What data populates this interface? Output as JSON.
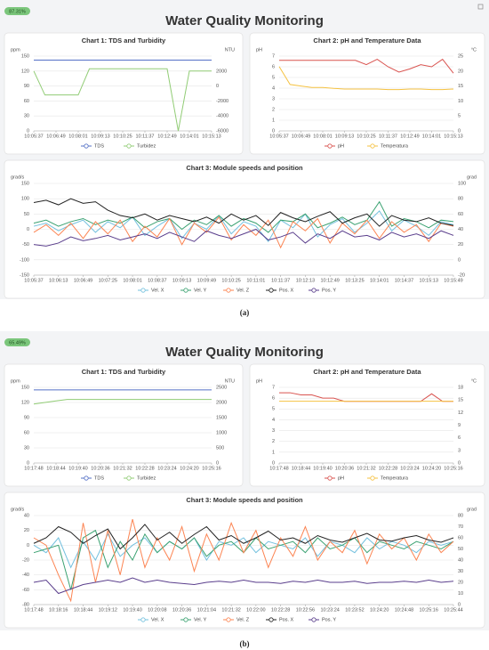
{
  "panels": [
    {
      "badge": "87.31%",
      "title": "Water Quality Monitoring",
      "caption": "(a)"
    },
    {
      "badge": "65.49%",
      "title": "Water Quality Monitoring",
      "caption": "(b)"
    }
  ],
  "chart_data": [
    {
      "type": "line",
      "title": "Chart 1: TDS and Turbidity",
      "ylabel": "ppm",
      "y2label": "NTU",
      "categories": [
        "10:05:37",
        null,
        "10:06:49",
        null,
        "10:08:01",
        null,
        "10:09:13",
        null,
        "10:10:25",
        null,
        "10:11:37",
        null,
        "10:12:49",
        null,
        "10:14:01",
        null,
        "10:15:13"
      ],
      "ylim": [
        0,
        150
      ],
      "yticks": [
        0,
        30,
        60,
        90,
        120,
        150
      ],
      "y2lim": [
        -6000,
        4000
      ],
      "y2ticks": [
        -6000,
        -4000,
        -2000,
        0,
        2000
      ],
      "grid": true,
      "series": [
        {
          "name": "TDS",
          "color": "#5470c6",
          "values": [
            142,
            142,
            142,
            142,
            142,
            142,
            142,
            142,
            142,
            142,
            142,
            142,
            142,
            142,
            142,
            142,
            142
          ]
        },
        {
          "name": "Turbidez",
          "color": "#91cc75",
          "axis": "y2",
          "values": [
            2000,
            -1200,
            -1200,
            -1200,
            -1200,
            2300,
            2300,
            2300,
            2300,
            2300,
            2300,
            2300,
            2300,
            -6000,
            2000,
            2000,
            2000
          ]
        }
      ]
    },
    {
      "type": "line",
      "title": "Chart 2: pH and Temperature Data",
      "ylabel": "pH",
      "y2label": "°C",
      "categories": [
        "10:05:37",
        null,
        "10:06:49",
        null,
        "10:08:01",
        null,
        "10:09:13",
        null,
        "10:10:25",
        null,
        "10:11:37",
        null,
        "10:12:49",
        null,
        "10:14:01",
        null,
        "10:15:13"
      ],
      "ylim": [
        0,
        7
      ],
      "yticks": [
        0,
        1,
        2,
        3,
        4,
        5,
        6,
        7
      ],
      "y2lim": [
        0,
        25
      ],
      "y2ticks": [
        0,
        5,
        10,
        15,
        20,
        25
      ],
      "grid": true,
      "series": [
        {
          "name": "pH",
          "color": "#d9534f",
          "values": [
            6.6,
            6.6,
            6.6,
            6.6,
            6.6,
            6.6,
            6.6,
            6.6,
            6.2,
            6.7,
            6.0,
            5.5,
            5.8,
            6.2,
            6.0,
            6.7,
            5.4
          ]
        },
        {
          "name": "Temperatura",
          "color": "#f5c242",
          "axis": "y2",
          "values": [
            21.5,
            15.5,
            15,
            14.5,
            14.5,
            14.2,
            14,
            14,
            14,
            14,
            13.8,
            13.8,
            14,
            14,
            13.8,
            13.8,
            14
          ]
        }
      ]
    },
    {
      "type": "line",
      "title": "Chart 3: Module speeds and position",
      "ylabel": "grad/s",
      "y2label": "grad",
      "categories": [
        "10:05:37",
        null,
        "10:06:13",
        null,
        "10:06:49",
        null,
        "10:07:25",
        null,
        "10:08:01",
        null,
        "10:08:37",
        null,
        "10:09:13",
        null,
        "10:09:49",
        null,
        "10:10:25",
        null,
        "10:11:01",
        null,
        "10:11:37",
        null,
        "10:12:13",
        null,
        "10:12:49",
        null,
        "10:13:25",
        null,
        "10:14:01",
        null,
        "10:14:37",
        null,
        "10:15:13",
        null,
        "10:15:49"
      ],
      "ylim": [
        -150,
        150
      ],
      "yticks": [
        -150,
        -100,
        -50,
        0,
        50,
        100,
        150
      ],
      "y2lim": [
        -20,
        100
      ],
      "y2ticks": [
        -20,
        0,
        20,
        40,
        60,
        80,
        100
      ],
      "grid": true,
      "series": [
        {
          "name": "Vel. X",
          "color": "#73c0de",
          "values": [
            10,
            20,
            -5,
            15,
            30,
            -10,
            25,
            5,
            40,
            -20,
            10,
            35,
            -30,
            20,
            0,
            45,
            -15,
            25,
            10,
            -40,
            30,
            5,
            50,
            -25,
            15,
            35,
            -10,
            20,
            60,
            -5,
            30,
            10,
            -20,
            25,
            15
          ]
        },
        {
          "name": "Vel. Y",
          "color": "#3ba272",
          "values": [
            20,
            30,
            10,
            25,
            35,
            15,
            30,
            20,
            40,
            5,
            25,
            35,
            0,
            30,
            15,
            45,
            10,
            35,
            20,
            -10,
            30,
            25,
            50,
            5,
            20,
            40,
            15,
            30,
            90,
            10,
            35,
            25,
            5,
            30,
            25
          ]
        },
        {
          "name": "Vel. Z",
          "color": "#fc8452",
          "values": [
            -10,
            15,
            -20,
            20,
            -30,
            25,
            -15,
            30,
            -40,
            10,
            -25,
            35,
            -50,
            20,
            -10,
            40,
            -35,
            15,
            -20,
            30,
            -60,
            25,
            -5,
            35,
            -45,
            20,
            -15,
            30,
            -30,
            25,
            -10,
            15,
            -40,
            20,
            10
          ]
        },
        {
          "name": "Pos. X",
          "color": "#222222",
          "axis": "y2",
          "values": [
            75,
            78,
            72,
            80,
            74,
            76,
            65,
            58,
            55,
            60,
            52,
            58,
            54,
            50,
            56,
            48,
            60,
            52,
            58,
            45,
            62,
            55,
            50,
            57,
            63,
            48,
            55,
            60,
            44,
            58,
            52,
            50,
            55,
            48,
            45
          ]
        },
        {
          "name": "Pos. Y",
          "color": "#5a3e8c",
          "axis": "y2",
          "values": [
            20,
            18,
            22,
            30,
            25,
            28,
            32,
            26,
            30,
            34,
            28,
            36,
            30,
            24,
            38,
            32,
            28,
            34,
            40,
            26,
            30,
            36,
            22,
            34,
            28,
            38,
            30,
            32,
            26,
            36,
            30,
            34,
            28,
            38,
            32
          ]
        }
      ]
    },
    {
      "type": "line",
      "title": "Chart 1: TDS and Turbidity",
      "ylabel": "ppm",
      "y2label": "NTU",
      "categories": [
        "10:17:48",
        null,
        "10:18:44",
        null,
        "10:19:40",
        null,
        "10:20:36",
        null,
        "10:21:32",
        null,
        "10:22:28",
        null,
        "10:23:24",
        null,
        "10:24:20",
        null,
        "10:25:16"
      ],
      "ylim": [
        0,
        150
      ],
      "yticks": [
        0,
        30,
        60,
        90,
        120,
        150
      ],
      "y2lim": [
        0,
        2500
      ],
      "y2ticks": [
        0,
        500,
        1000,
        1500,
        2000,
        2500
      ],
      "grid": true,
      "series": [
        {
          "name": "TDS",
          "color": "#5470c6",
          "values": [
            145,
            145,
            145,
            145,
            145,
            145,
            145,
            145,
            145,
            145,
            145,
            145,
            145,
            145,
            145,
            145,
            145
          ]
        },
        {
          "name": "Turbidez",
          "color": "#91cc75",
          "axis": "y2",
          "values": [
            1950,
            2000,
            2050,
            2100,
            2100,
            2100,
            2100,
            2100,
            2100,
            2100,
            2100,
            2100,
            2100,
            2100,
            2100,
            2100,
            2100
          ]
        }
      ]
    },
    {
      "type": "line",
      "title": "Chart 2: pH and Temperature Data",
      "ylabel": "pH",
      "y2label": "°C",
      "categories": [
        "10:17:48",
        null,
        "10:18:44",
        null,
        "10:19:40",
        null,
        "10:20:36",
        null,
        "10:21:32",
        null,
        "10:22:28",
        null,
        "10:23:24",
        null,
        "10:24:20",
        null,
        "10:25:16"
      ],
      "ylim": [
        0,
        7
      ],
      "yticks": [
        0,
        1,
        2,
        3,
        4,
        5,
        6,
        7
      ],
      "y2lim": [
        0,
        18
      ],
      "y2ticks": [
        0,
        3,
        6,
        9,
        12,
        15,
        18
      ],
      "grid": true,
      "series": [
        {
          "name": "pH",
          "color": "#d9534f",
          "values": [
            6.5,
            6.5,
            6.3,
            6.3,
            6.0,
            6.0,
            5.7,
            5.7,
            5.7,
            5.7,
            5.7,
            5.7,
            5.7,
            5.7,
            6.4,
            5.7,
            5.7
          ]
        },
        {
          "name": "Temperatura",
          "color": "#f5c242",
          "axis": "y2",
          "values": [
            14.7,
            14.7,
            14.7,
            14.7,
            14.7,
            14.7,
            14.7,
            14.7,
            14.7,
            14.7,
            14.7,
            14.7,
            14.7,
            14.7,
            14.7,
            14.7,
            14.7
          ]
        }
      ]
    },
    {
      "type": "line",
      "title": "Chart 3: Module speeds and position",
      "ylabel": "grad/s",
      "y2label": "grad",
      "categories": [
        "10:17:48",
        null,
        "10:18:16",
        null,
        "10:18:44",
        null,
        "10:19:12",
        null,
        "10:19:40",
        null,
        "10:20:08",
        null,
        "10:20:36",
        null,
        "10:21:04",
        null,
        "10:21:32",
        null,
        "10:22:00",
        null,
        "10:22:28",
        null,
        "10:22:56",
        null,
        "10:23:24",
        null,
        "10:23:52",
        null,
        "10:24:20",
        null,
        "10:24:48",
        null,
        "10:25:16",
        null,
        "10:25:44"
      ],
      "ylim": [
        -80,
        40
      ],
      "yticks": [
        -80,
        -60,
        -40,
        -20,
        0,
        20,
        40
      ],
      "y2lim": [
        0,
        80
      ],
      "y2ticks": [
        0,
        10,
        20,
        30,
        40,
        50,
        60,
        70,
        80
      ],
      "grid": true,
      "series": [
        {
          "name": "Vel. X",
          "color": "#73c0de",
          "values": [
            0,
            -10,
            10,
            -30,
            5,
            -20,
            15,
            -15,
            0,
            10,
            -10,
            5,
            -5,
            10,
            -20,
            5,
            0,
            10,
            -10,
            5,
            0,
            -5,
            10,
            -15,
            5,
            0,
            -10,
            10,
            -5,
            5,
            0,
            -10,
            5,
            0,
            5
          ]
        },
        {
          "name": "Vel. Y",
          "color": "#3ba272",
          "values": [
            -10,
            -5,
            0,
            -60,
            10,
            20,
            -30,
            5,
            -20,
            15,
            -10,
            5,
            -5,
            10,
            -15,
            0,
            5,
            -10,
            10,
            -5,
            0,
            5,
            -10,
            10,
            -5,
            0,
            10,
            -10,
            5,
            0,
            -5,
            5,
            0,
            -5,
            5
          ]
        },
        {
          "name": "Vel. Z",
          "color": "#fc8452",
          "values": [
            10,
            0,
            -40,
            -75,
            30,
            -50,
            20,
            -40,
            35,
            -30,
            10,
            -20,
            25,
            -35,
            15,
            -20,
            30,
            -10,
            20,
            -30,
            10,
            -15,
            25,
            -20,
            5,
            -10,
            20,
            -25,
            15,
            -5,
            10,
            -20,
            15,
            -10,
            5
          ]
        },
        {
          "name": "Pos. X",
          "color": "#222222",
          "axis": "y2",
          "values": [
            55,
            60,
            70,
            65,
            55,
            62,
            68,
            50,
            60,
            72,
            58,
            65,
            55,
            63,
            70,
            58,
            62,
            55,
            60,
            66,
            58,
            60,
            55,
            62,
            58,
            56,
            60,
            64,
            58,
            57,
            60,
            62,
            58,
            56,
            60
          ]
        },
        {
          "name": "Pos. Y",
          "color": "#5a3e8c",
          "axis": "y2",
          "values": [
            20,
            22,
            10,
            14,
            18,
            20,
            22,
            20,
            24,
            20,
            22,
            20,
            19,
            18,
            20,
            21,
            20,
            22,
            20,
            20,
            19,
            21,
            20,
            22,
            20,
            20,
            21,
            19,
            20,
            20,
            21,
            20,
            22,
            20,
            21
          ]
        }
      ]
    }
  ]
}
